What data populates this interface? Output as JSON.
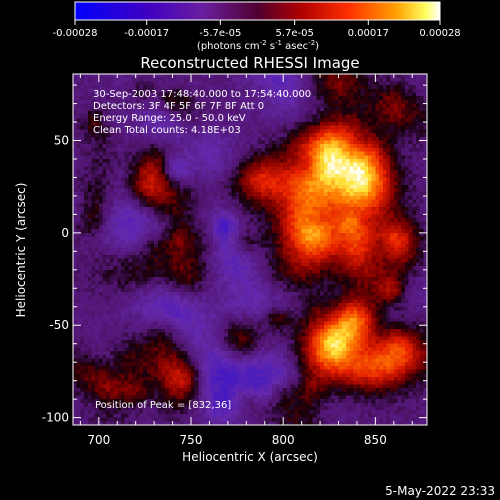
{
  "colorbar": {
    "ticks": [
      "-0.00028",
      "-0.00017",
      "-5.7e-05",
      "5.7e-05",
      "0.00017",
      "0.00028"
    ],
    "unit_label": "(photons cm",
    "unit_sup1": "-2",
    "unit_mid": " s",
    "unit_sup2": "-1",
    "unit_end": " asec",
    "unit_sup3": "-2",
    "unit_close": ")"
  },
  "plot": {
    "title": "Reconstructed RHESSI Image",
    "info_lines": [
      "30-Sep-2003 17:48:40.000 to 17:54:40.000",
      "Detectors: 3F 4F 5F 6F 7F 8F  Att 0",
      "Energy Range: 25.0 - 50.0 keV",
      "Clean    Total counts: 4.18E+03"
    ],
    "peak_text": "Position of Peak = [832,36]",
    "xlabel": "Heliocentric X (arcsec)",
    "ylabel": "Heliocentric Y (arcsec)"
  },
  "timestamp": "5-May-2022 23:33",
  "chart_data": {
    "type": "heatmap",
    "title": "Reconstructed RHESSI Image",
    "xlabel": "Heliocentric X (arcsec)",
    "ylabel": "Heliocentric Y (arcsec)",
    "xlim": [
      686,
      878
    ],
    "ylim": [
      -104,
      86
    ],
    "x_ticks": [
      700,
      750,
      800,
      850
    ],
    "y_ticks": [
      -100,
      -50,
      0,
      50
    ],
    "colorbar_range": [
      -0.00028,
      0.00028
    ],
    "colorbar_ticks": [
      -0.00028,
      -0.00017,
      -5.7e-05,
      5.7e-05,
      0.00017,
      0.00028
    ],
    "colormap": [
      "#0000ff",
      "#3b0080",
      "#7020a0",
      "#a00000",
      "#ff2000",
      "#ff8000",
      "#ffff40",
      "#ffffff"
    ],
    "peak_position": [
      832,
      36
    ],
    "time_range": "30-Sep-2003 17:48:40.000 to 17:54:40.000",
    "detectors": "3F 4F 5F 6F 7F 8F",
    "attenuator": "Att 0",
    "energy_range_keV": [
      25.0,
      50.0
    ],
    "method": "Clean",
    "total_counts": 4180
  }
}
